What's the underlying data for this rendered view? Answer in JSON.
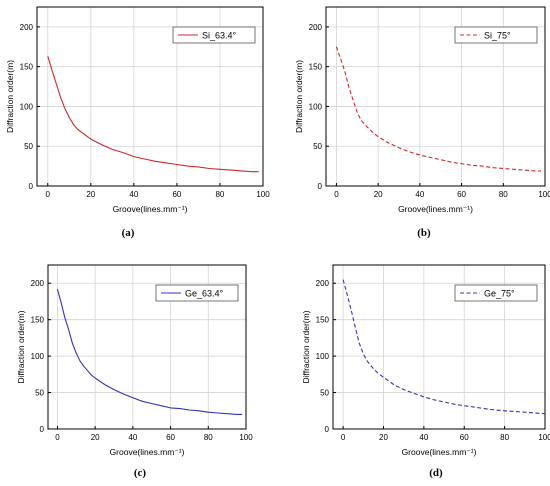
{
  "chart_data": [
    {
      "type": "line",
      "caption": "(a)",
      "xlabel": "Groove(lines.mm⁻¹)",
      "ylabel": "Diffraction order(m)",
      "xlim": [
        -5,
        100
      ],
      "ylim": [
        0,
        225
      ],
      "xticks": [
        0,
        20,
        40,
        60,
        80,
        100
      ],
      "yticks": [
        0,
        50,
        100,
        150,
        200
      ],
      "grid": true,
      "legend": "top-right",
      "series": [
        {
          "name": "Si_63.4°",
          "color": "#cc2a2a",
          "dash": "solid",
          "x": [
            0,
            2,
            4,
            6,
            8,
            10,
            12,
            14,
            16,
            18,
            20,
            25,
            30,
            35,
            40,
            45,
            50,
            55,
            60,
            65,
            70,
            75,
            80,
            85,
            90,
            95,
            98
          ],
          "values": [
            163,
            145,
            128,
            111,
            97,
            86,
            77,
            71,
            67,
            63,
            59,
            52,
            46,
            42,
            37,
            34,
            31,
            29,
            27,
            25,
            24,
            22,
            21,
            20,
            19,
            18,
            18
          ]
        }
      ]
    },
    {
      "type": "line",
      "caption": "(b)",
      "xlabel": "Groove(lines.mm⁻¹)",
      "ylabel": "Diffraction order(m)",
      "xlim": [
        -5,
        100
      ],
      "ylim": [
        0,
        225
      ],
      "xticks": [
        0,
        20,
        40,
        60,
        80,
        100
      ],
      "yticks": [
        0,
        50,
        100,
        150,
        200
      ],
      "grid": true,
      "legend": "top-right",
      "series": [
        {
          "name": "Si_75°",
          "color": "#cc2a2a",
          "dash": "dashed",
          "x": [
            0,
            2,
            4,
            6,
            8,
            10,
            12,
            14,
            16,
            18,
            20,
            25,
            30,
            35,
            40,
            45,
            50,
            55,
            60,
            65,
            70,
            75,
            80,
            85,
            90,
            95,
            98
          ],
          "values": [
            175,
            160,
            144,
            124,
            108,
            92,
            82,
            76,
            71,
            66,
            62,
            54,
            48,
            43,
            39,
            36,
            33,
            30,
            28,
            26,
            25,
            23,
            22,
            21,
            20,
            19,
            19
          ]
        }
      ]
    },
    {
      "type": "line",
      "caption": "(c)",
      "xlabel": "Groove(lines.mm⁻¹)",
      "ylabel": "Diffraction order(m)",
      "xlim": [
        -5,
        100
      ],
      "ylim": [
        0,
        225
      ],
      "xticks": [
        0,
        20,
        40,
        60,
        80,
        100
      ],
      "yticks": [
        0,
        50,
        100,
        150,
        200
      ],
      "grid": true,
      "legend": "top-right",
      "series": [
        {
          "name": "Ge_63.4°",
          "color": "#3333bb",
          "dash": "solid",
          "x": [
            0,
            2,
            4,
            6,
            8,
            10,
            12,
            14,
            16,
            18,
            20,
            25,
            30,
            35,
            40,
            45,
            50,
            55,
            60,
            65,
            70,
            75,
            80,
            85,
            90,
            95,
            98
          ],
          "values": [
            192,
            173,
            152,
            136,
            117,
            104,
            93,
            86,
            80,
            74,
            70,
            61,
            54,
            48,
            43,
            38,
            35,
            32,
            29,
            28,
            26,
            25,
            23,
            22,
            21,
            20,
            20
          ]
        }
      ]
    },
    {
      "type": "line",
      "caption": "(d)",
      "xlabel": "Groove(lines.mm⁻¹)",
      "ylabel": "Diffraction order(m)",
      "xlim": [
        -5,
        100
      ],
      "ylim": [
        0,
        225
      ],
      "xticks": [
        0,
        20,
        40,
        60,
        80,
        100
      ],
      "yticks": [
        0,
        50,
        100,
        150,
        200
      ],
      "grid": true,
      "legend": "top-right",
      "series": [
        {
          "name": "Ge_75°",
          "color": "#3333bb",
          "dash": "dashed",
          "x": [
            0,
            2,
            4,
            6,
            8,
            10,
            12,
            14,
            16,
            18,
            20,
            25,
            30,
            35,
            40,
            45,
            50,
            55,
            60,
            65,
            70,
            75,
            80,
            85,
            90,
            95,
            100
          ],
          "values": [
            205,
            185,
            163,
            140,
            118,
            103,
            93,
            86,
            80,
            75,
            71,
            61,
            54,
            49,
            44,
            40,
            37,
            34,
            32,
            30,
            28,
            26,
            25,
            24,
            23,
            22,
            21
          ]
        }
      ]
    }
  ]
}
